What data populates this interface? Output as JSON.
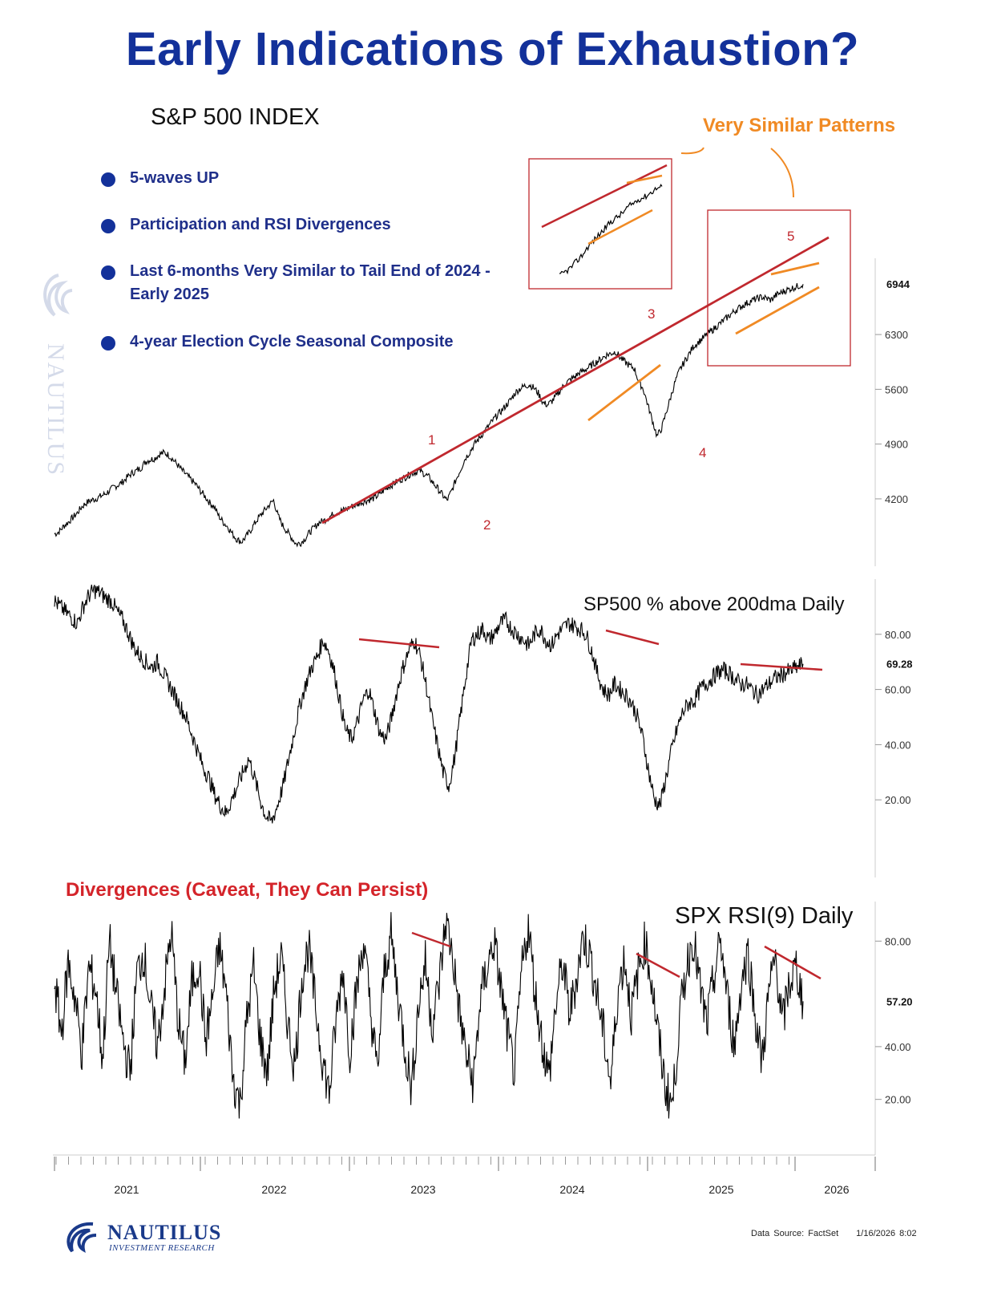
{
  "title": "Early Indications of Exhaustion?",
  "panel_label": "S&P 500 INDEX",
  "bullets": [
    "5-waves UP",
    "Participation and RSI Divergences",
    "Last 6-months Very Similar to Tail End of 2024 - Early 2025",
    "4-year Election Cycle Seasonal Composite"
  ],
  "annotation_patterns": "Very Similar Patterns",
  "annotation_divergences": "Divergences (Caveat, They Can Persist)",
  "wave_labels": [
    "1",
    "2",
    "3",
    "4",
    "5"
  ],
  "footer": {
    "source": "Data Source: FactSet",
    "timestamp": "1/16/2026 8:02"
  },
  "logo": {
    "name": "NAUTILUS",
    "sub": "INVESTMENT RESEARCH"
  },
  "colors": {
    "title": "#13319a",
    "trend": "#c0282e",
    "channel": "#f08a24",
    "line": "#000000"
  },
  "chart_data": [
    {
      "type": "line",
      "title": "S&P 500 INDEX",
      "x_ticks": [
        "2021",
        "2022",
        "2023",
        "2024",
        "2025",
        "2026"
      ],
      "y_ticks": [
        4200,
        4900,
        5600,
        6300
      ],
      "last_value_label": "6944",
      "ylim": [
        3400,
        7500
      ],
      "series": [
        {
          "values": [
            3750,
            3780,
            3850,
            3900,
            3960,
            4020,
            4100,
            4150,
            4180,
            4200,
            4230,
            4260,
            4300,
            4350,
            4380,
            4420,
            4480,
            4530,
            4560,
            4600,
            4680,
            4700,
            4720,
            4770,
            4790,
            4760,
            4700,
            4630,
            4560,
            4500,
            4440,
            4380,
            4300,
            4230,
            4150,
            4100,
            3980,
            3900,
            3840,
            3750,
            3680,
            3650,
            3720,
            3800,
            3900,
            3980,
            4050,
            4120,
            4180,
            3980,
            3860,
            3780,
            3700,
            3620,
            3640,
            3700,
            3780,
            3840,
            3900,
            3920,
            3960,
            4000,
            4030,
            4050,
            4070,
            4100,
            4120,
            4150,
            4170,
            4190,
            4210,
            4250,
            4300,
            4350,
            4380,
            4420,
            4450,
            4480,
            4520,
            4540,
            4560,
            4520,
            4480,
            4400,
            4330,
            4250,
            4180,
            4300,
            4450,
            4580,
            4720,
            4800,
            4900,
            4970,
            5050,
            5120,
            5200,
            5270,
            5330,
            5400,
            5470,
            5560,
            5610,
            5640,
            5660,
            5620,
            5550,
            5430,
            5400,
            5450,
            5520,
            5600,
            5680,
            5720,
            5760,
            5810,
            5840,
            5880,
            5920,
            5960,
            6000,
            6040,
            6060,
            6080,
            6000,
            5950,
            5900,
            5870,
            5700,
            5600,
            5400,
            5200,
            5000,
            5100,
            5300,
            5500,
            5700,
            5850,
            5950,
            6050,
            6150,
            6200,
            6250,
            6300,
            6350,
            6400,
            6450,
            6500,
            6550,
            6600,
            6640,
            6680,
            6710,
            6740,
            6760,
            6780,
            6760,
            6740,
            6800,
            6830,
            6860,
            6880,
            6900,
            6920,
            6944
          ]
        }
      ]
    },
    {
      "type": "line",
      "title": "SP500 % above 200dma Daily",
      "y_ticks": [
        20.0,
        40.0,
        60.0,
        80.0
      ],
      "last_value_label": "69.28",
      "ylim": [
        0,
        100
      ],
      "series": [
        {
          "values": [
            92,
            90,
            88,
            86,
            84,
            90,
            94,
            96,
            95,
            93,
            92,
            88,
            85,
            80,
            75,
            72,
            70,
            68,
            70,
            66,
            62,
            58,
            54,
            50,
            44,
            38,
            32,
            28,
            22,
            18,
            15,
            20,
            25,
            30,
            35,
            28,
            20,
            14,
            12,
            18,
            25,
            35,
            45,
            55,
            62,
            68,
            72,
            78,
            74,
            66,
            55,
            45,
            42,
            48,
            56,
            60,
            52,
            44,
            42,
            50,
            60,
            68,
            74,
            78,
            72,
            62,
            50,
            40,
            30,
            25,
            35,
            50,
            65,
            78,
            80,
            82,
            78,
            80,
            84,
            85,
            82,
            80,
            78,
            76,
            80,
            82,
            78,
            76,
            80,
            82,
            84,
            83,
            82,
            80,
            74,
            66,
            60,
            58,
            62,
            60,
            58,
            55,
            50,
            42,
            30,
            20,
            18,
            28,
            38,
            46,
            52,
            55,
            56,
            60,
            62,
            64,
            66,
            67,
            66,
            64,
            62,
            62,
            60,
            58,
            60,
            62,
            64,
            65,
            66,
            67,
            68,
            69.28
          ]
        }
      ]
    },
    {
      "type": "line",
      "title": "SPX RSI(9) Daily",
      "y_ticks": [
        20.0,
        40.0,
        80.0
      ],
      "last_value_label": "57.20",
      "ylim": [
        5,
        95
      ],
      "series": [
        {
          "values": [
            65,
            45,
            72,
            58,
            38,
            70,
            62,
            35,
            80,
            60,
            42,
            30,
            68,
            76,
            55,
            40,
            62,
            84,
            50,
            34,
            64,
            72,
            42,
            58,
            78,
            60,
            28,
            18,
            50,
            70,
            42,
            30,
            62,
            74,
            48,
            32,
            66,
            78,
            55,
            36,
            22,
            50,
            70,
            38,
            62,
            80,
            54,
            30,
            68,
            82,
            60,
            40,
            24,
            56,
            72,
            48,
            64,
            88,
            74,
            52,
            36,
            26,
            58,
            70,
            80,
            62,
            44,
            30,
            68,
            86,
            60,
            42,
            28,
            56,
            72,
            52,
            66,
            82,
            74,
            60,
            44,
            26,
            60,
            74,
            52,
            68,
            80,
            64,
            42,
            24,
            18,
            50,
            70,
            82,
            62,
            48,
            66,
            80,
            58,
            40,
            64,
            76,
            52,
            34,
            60,
            74,
            48,
            64,
            70,
            57.2
          ]
        }
      ]
    }
  ]
}
